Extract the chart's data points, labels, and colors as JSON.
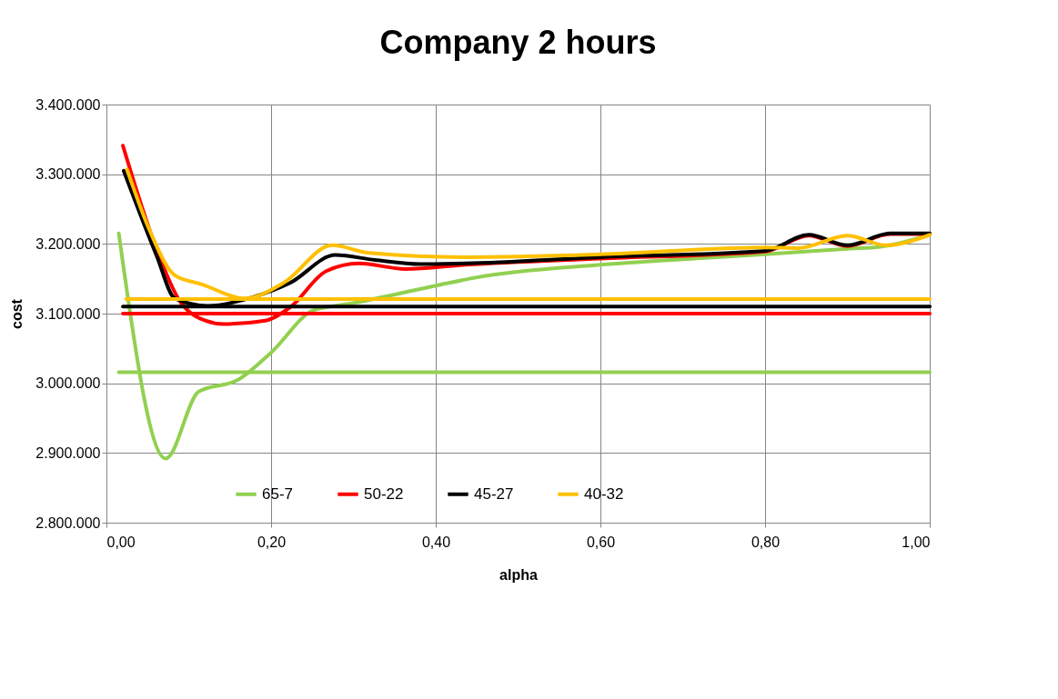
{
  "chart_data": {
    "type": "line",
    "title": "Company 2 hours",
    "xlabel": "alpha",
    "ylabel": "cost",
    "xlim": [
      0,
      1
    ],
    "xticks": [
      {
        "value": 0,
        "label": "0,00"
      },
      {
        "value": 0.2,
        "label": "0,20"
      },
      {
        "value": 0.4,
        "label": "0,40"
      },
      {
        "value": 0.6,
        "label": "0,60"
      },
      {
        "value": 0.8,
        "label": "0,80"
      },
      {
        "value": 1,
        "label": "1,00"
      }
    ],
    "ylim": [
      2800000,
      3400000
    ],
    "yticks": [
      {
        "value": 2800000,
        "label": "2.800.000"
      },
      {
        "value": 2900000,
        "label": "2.900.000"
      },
      {
        "value": 3000000,
        "label": "3.000.000"
      },
      {
        "value": 3100000,
        "label": "3.100.000"
      },
      {
        "value": 3200000,
        "label": "3.200.000"
      },
      {
        "value": 3300000,
        "label": "3.300.000"
      },
      {
        "value": 3400000,
        "label": "3.400.000"
      }
    ],
    "grid": true,
    "legend": "bottom",
    "line_style": "solid",
    "marker": "none",
    "series": [
      {
        "name": "65-7",
        "color": "#92d050",
        "x": [
          0.015,
          0.072,
          0.112,
          0.16,
          0.2,
          0.252,
          0.3,
          0.4,
          0.45,
          0.6,
          0.7,
          0.8,
          0.9,
          0.94,
          1.0
        ],
        "values": [
          3215000,
          2892000,
          2988000,
          3005000,
          3044000,
          3105000,
          3115000,
          3140000,
          3152000,
          3170000,
          3178000,
          3185000,
          3193000,
          3196000,
          3213000
        ]
      },
      {
        "name": "50-22",
        "color": "#ff0000",
        "x": [
          0.02,
          0.061,
          0.087,
          0.12,
          0.142,
          0.193,
          0.223,
          0.267,
          0.307,
          0.363,
          0.436,
          0.6,
          0.8,
          0.853,
          0.9,
          0.952,
          1.0
        ],
        "values": [
          3341000,
          3192000,
          3122000,
          3090000,
          3085000,
          3090000,
          3109000,
          3161000,
          3172000,
          3164000,
          3170000,
          3179000,
          3189000,
          3212000,
          3197000,
          3214000,
          3214000
        ]
      },
      {
        "name": "45-27",
        "color": "#000000",
        "x": [
          0.021,
          0.061,
          0.083,
          0.123,
          0.179,
          0.223,
          0.278,
          0.326,
          0.381,
          0.436,
          0.6,
          0.8,
          0.853,
          0.9,
          0.952,
          1.0
        ],
        "values": [
          3305000,
          3183000,
          3122000,
          3111000,
          3124000,
          3144000,
          3184000,
          3177000,
          3171000,
          3172000,
          3181000,
          3190000,
          3213000,
          3198000,
          3215000,
          3215000
        ]
      },
      {
        "name": "40-32",
        "color": "#ffc000",
        "x": [
          0.025,
          0.053,
          0.083,
          0.116,
          0.168,
          0.215,
          0.274,
          0.319,
          0.436,
          0.6,
          0.8,
          0.84,
          0.9,
          0.947,
          1.0
        ],
        "values": [
          3307000,
          3218000,
          3155000,
          3142000,
          3122000,
          3144000,
          3198000,
          3187000,
          3181000,
          3185000,
          3195000,
          3194000,
          3212000,
          3198000,
          3213000
        ]
      },
      {
        "color": "#92d050",
        "x": [
          0.015,
          1.0
        ],
        "values": [
          3016000,
          3016000
        ]
      },
      {
        "color": "#ff0000",
        "x": [
          0.02,
          1.0
        ],
        "values": [
          3100000,
          3100000
        ]
      },
      {
        "color": "#000000",
        "x": [
          0.02,
          1.0
        ],
        "values": [
          3110000,
          3110000
        ]
      },
      {
        "color": "#ffc000",
        "x": [
          0.024,
          1.0
        ],
        "values": [
          3121000,
          3121000
        ]
      }
    ]
  }
}
